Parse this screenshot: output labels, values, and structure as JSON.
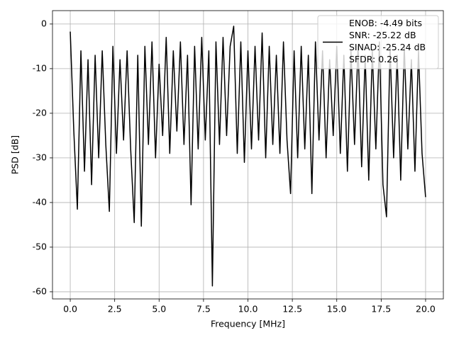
{
  "chart_data": {
    "type": "line",
    "xlabel": "Frequency [MHz]",
    "ylabel": "PSD [dB]",
    "x": [
      0,
      0.2,
      0.4,
      0.6,
      0.8,
      1.0,
      1.2,
      1.4,
      1.6,
      1.8,
      2.0,
      2.2,
      2.4,
      2.6,
      2.8,
      3.0,
      3.2,
      3.4,
      3.6,
      3.8,
      4.0,
      4.2,
      4.4,
      4.6,
      4.8,
      5.0,
      5.2,
      5.4,
      5.6,
      5.8,
      6.0,
      6.2,
      6.4,
      6.6,
      6.8,
      7.0,
      7.2,
      7.4,
      7.6,
      7.8,
      8.0,
      8.2,
      8.4,
      8.6,
      8.8,
      9.0,
      9.2,
      9.4,
      9.6,
      9.8,
      10.0,
      10.2,
      10.4,
      10.6,
      10.8,
      11.0,
      11.2,
      11.4,
      11.6,
      11.8,
      12.0,
      12.2,
      12.4,
      12.6,
      12.8,
      13.0,
      13.2,
      13.4,
      13.6,
      13.8,
      14.0,
      14.2,
      14.4,
      14.6,
      14.8,
      15.0,
      15.2,
      15.4,
      15.6,
      15.8,
      16.0,
      16.2,
      16.4,
      16.6,
      16.8,
      17.0,
      17.2,
      17.4,
      17.6,
      17.8,
      18.0,
      18.2,
      18.4,
      18.6,
      18.8,
      19.0,
      19.2,
      19.4,
      19.6,
      19.8,
      20.0
    ],
    "series": [
      {
        "name": "ENOB: -4.49 bits\nSNR: -25.22 dB\nSINAD: -25.24 dB\nSFDR: 0.26",
        "color": "#000000",
        "values": [
          -1.7,
          -24,
          -41.5,
          -6,
          -33,
          -8,
          -36,
          -7,
          -30,
          -6,
          -27,
          -42,
          -5,
          -29,
          -8,
          -26,
          -6,
          -28,
          -44.5,
          -7,
          -45.3,
          -5,
          -27,
          -4,
          -30,
          -9,
          -25,
          -3,
          -29,
          -6,
          -24,
          -4,
          -27,
          -7,
          -40.5,
          -5,
          -28,
          -3,
          -26,
          -6,
          -58.7,
          -4,
          -27,
          -3,
          -25,
          -5,
          -0.5,
          -29,
          -4,
          -31,
          -6,
          -28,
          -5,
          -26,
          -2,
          -30,
          -5,
          -27,
          -7,
          -29,
          -4,
          -26,
          -38,
          -6,
          -30,
          -5,
          -28,
          -7,
          -38,
          -4,
          -26,
          -6,
          -30,
          -8,
          -25,
          -5,
          -29,
          -7,
          -33,
          -6,
          -27,
          -5,
          -32,
          -7,
          -35,
          -6,
          -28,
          -4,
          -36,
          -43.2,
          -5,
          -30,
          -7,
          -35,
          -5,
          -28,
          -8,
          -33,
          -6,
          -29,
          -38.8
        ]
      }
    ],
    "xlim": [
      -1.0,
      21.0
    ],
    "ylim": [
      3.0,
      -61.6
    ],
    "xticks": [
      {
        "value": 0,
        "label": "0.0"
      },
      2.5,
      {
        "value": 5,
        "label": "5.0"
      },
      7.5,
      {
        "value": 10,
        "label": "10.0"
      },
      12.5,
      {
        "value": 15,
        "label": "15.0"
      },
      17.5,
      {
        "value": 20,
        "label": "20.0"
      }
    ],
    "yticks": [
      0,
      -10,
      -20,
      -30,
      -40,
      -50,
      -60
    ],
    "grid": true,
    "legend": "upper right"
  }
}
